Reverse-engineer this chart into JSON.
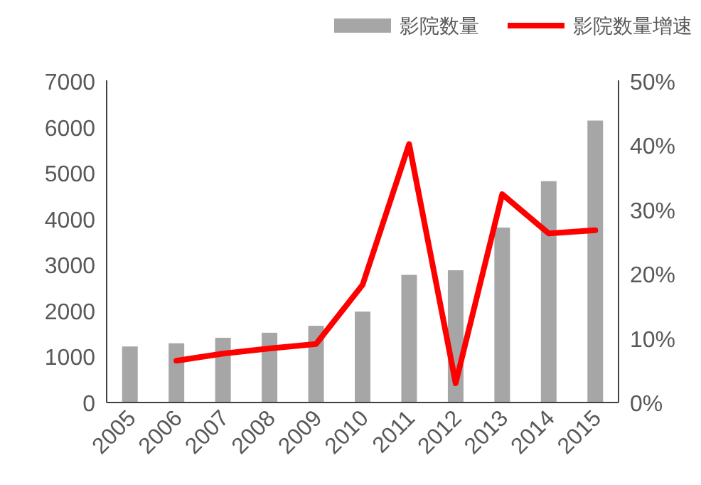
{
  "chart_data": {
    "type": "bar",
    "categories": [
      "2005",
      "2006",
      "2007",
      "2008",
      "2009",
      "2010",
      "2011",
      "2012",
      "2013",
      "2014",
      "2015"
    ],
    "series": [
      {
        "name": "影院数量",
        "color": "#a6a6a6",
        "values": [
          1220,
          1290,
          1410,
          1520,
          1670,
          1980,
          2780,
          2880,
          3810,
          4820,
          6140
        ]
      },
      {
        "name": "影院数量增速",
        "type": "line",
        "axis": "y2",
        "color": "#ff0000",
        "values": [
          null,
          6.5,
          7.6,
          8.4,
          9.1,
          18.3,
          40.2,
          3.0,
          32.4,
          26.3,
          26.8
        ]
      }
    ],
    "ylim": [
      0,
      7000
    ],
    "yticks": [
      0,
      1000,
      2000,
      3000,
      4000,
      5000,
      6000,
      7000
    ],
    "y2lim": [
      0,
      50
    ],
    "y2ticks": [
      {
        "value": 0,
        "label": "0%"
      },
      {
        "value": 10,
        "label": "10%"
      },
      {
        "value": 20,
        "label": "20%"
      },
      {
        "value": 30,
        "label": "30%"
      },
      {
        "value": 40,
        "label": "40%"
      },
      {
        "value": 50,
        "label": "50%"
      }
    ],
    "grid": false,
    "legend": "top",
    "marker": "none",
    "line_style": "solid"
  }
}
